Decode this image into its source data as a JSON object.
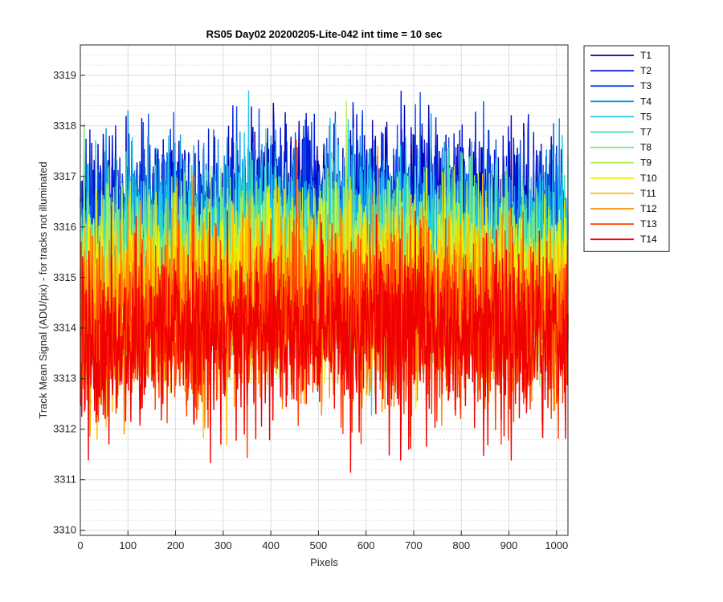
{
  "chart_data": {
    "type": "line",
    "title": "RS05 Day02 20200205-Lite-042 int time = 10 sec",
    "xlabel": "Pixels",
    "ylabel": "Track Mean Signal (ADU/pix) - for tracks not illuminated",
    "xlim": [
      0,
      1024
    ],
    "ylim": [
      3309.9,
      3319.6
    ],
    "x_ticks": [
      0,
      100,
      200,
      300,
      400,
      500,
      600,
      700,
      800,
      900,
      1000
    ],
    "y_ticks": [
      3310,
      3311,
      3312,
      3313,
      3314,
      3315,
      3316,
      3317,
      3318,
      3319
    ],
    "grid": true,
    "minor_grid_y": true,
    "legend_placement": "outside-top-right",
    "n_points": 1024,
    "series": [
      {
        "name": "T1",
        "color": "#0000b4",
        "mean": 3316.0,
        "spread": 0.85
      },
      {
        "name": "T2",
        "color": "#0018d8",
        "mean": 3315.9,
        "spread": 0.85
      },
      {
        "name": "T3",
        "color": "#0a4ee8",
        "mean": 3315.8,
        "spread": 0.85
      },
      {
        "name": "T4",
        "color": "#1496e6",
        "mean": 3315.6,
        "spread": 0.85
      },
      {
        "name": "T5",
        "color": "#1ec8f0",
        "mean": 3315.4,
        "spread": 0.85
      },
      {
        "name": "T7",
        "color": "#3cdcb4",
        "mean": 3315.2,
        "spread": 0.85
      },
      {
        "name": "T8",
        "color": "#78e68c",
        "mean": 3315.0,
        "spread": 0.85
      },
      {
        "name": "T9",
        "color": "#b4f050",
        "mean": 3314.8,
        "spread": 0.85
      },
      {
        "name": "T10",
        "color": "#f0f000",
        "mean": 3314.6,
        "spread": 0.85
      },
      {
        "name": "T11",
        "color": "#ffc000",
        "mean": 3314.4,
        "spread": 0.85
      },
      {
        "name": "T12",
        "color": "#ff8a00",
        "mean": 3314.1,
        "spread": 0.9
      },
      {
        "name": "T13",
        "color": "#ff4000",
        "mean": 3313.9,
        "spread": 0.9
      },
      {
        "name": "T14",
        "color": "#f00000",
        "mean": 3313.7,
        "spread": 0.9
      }
    ]
  }
}
